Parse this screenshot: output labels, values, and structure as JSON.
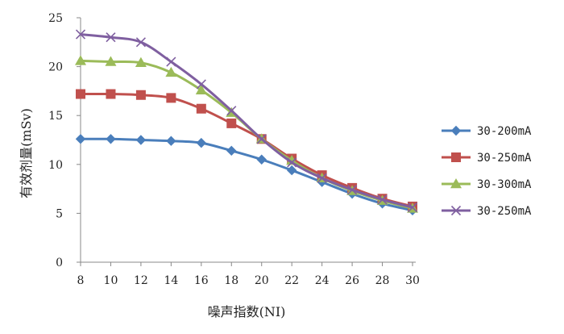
{
  "chart_data": {
    "type": "line",
    "xlabel": "噪声指数(NI)",
    "ylabel": "有效剂量(mSv)",
    "x": [
      8,
      10,
      12,
      14,
      16,
      18,
      20,
      22,
      24,
      26,
      28,
      30
    ],
    "ylim": [
      0,
      25
    ],
    "yticks": [
      0,
      5,
      10,
      15,
      20,
      25
    ],
    "grid": false,
    "legend_position": "right",
    "series": [
      {
        "name": "30-200mA",
        "marker": "diamond",
        "color": "#4a7ebb",
        "values": [
          12.6,
          12.6,
          12.5,
          12.4,
          12.2,
          11.4,
          10.5,
          9.4,
          8.2,
          7.0,
          6.0,
          5.3
        ]
      },
      {
        "name": "30-250mA",
        "marker": "square",
        "color": "#c0504d",
        "values": [
          17.2,
          17.2,
          17.1,
          16.8,
          15.7,
          14.2,
          12.6,
          10.6,
          8.9,
          7.6,
          6.5,
          5.7
        ]
      },
      {
        "name": "30-300mA",
        "marker": "triangle",
        "color": "#9bbb59",
        "values": [
          20.6,
          20.5,
          20.4,
          19.4,
          17.6,
          15.3,
          12.6,
          10.4,
          8.6,
          7.3,
          6.3,
          5.5
        ]
      },
      {
        "name": "30-250mA",
        "marker": "x",
        "color": "#7f5fa0",
        "values": [
          23.3,
          23.0,
          22.5,
          20.5,
          18.2,
          15.5,
          12.6,
          10.2,
          8.6,
          7.4,
          6.4,
          5.6
        ]
      }
    ]
  }
}
